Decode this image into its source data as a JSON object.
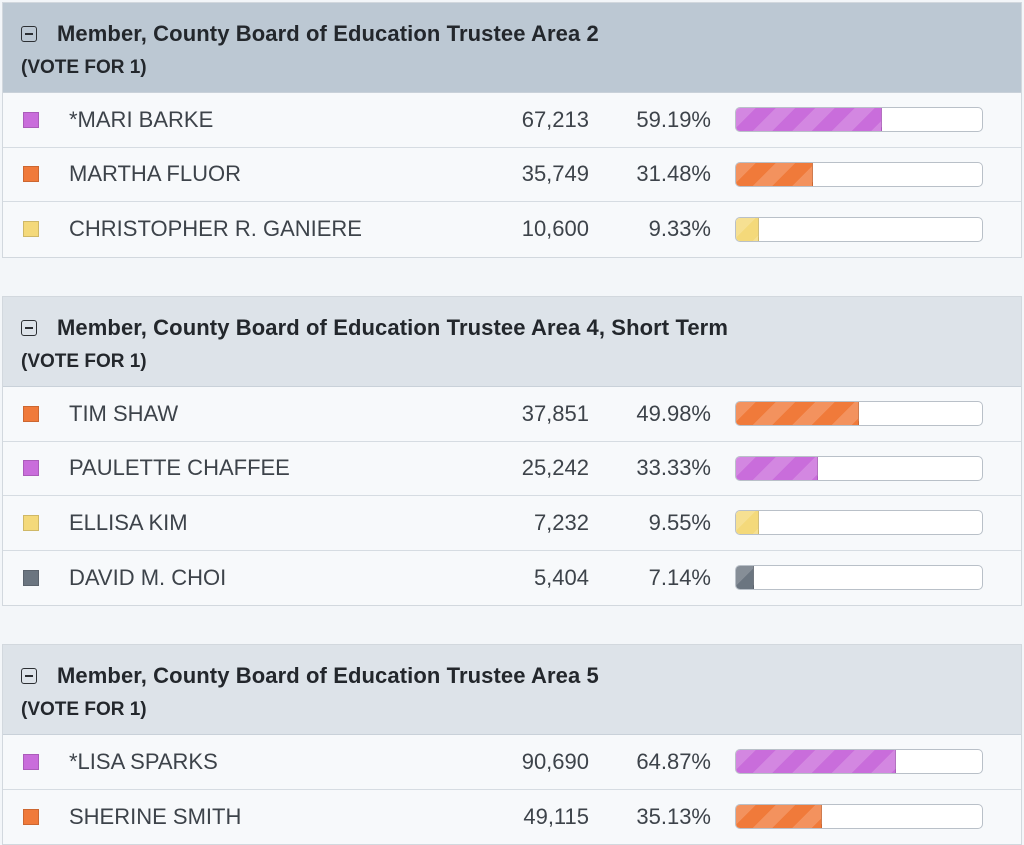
{
  "races": [
    {
      "title": "Member, County Board of Education Trustee Area 2",
      "vote_for": "(VOTE FOR 1)",
      "header_bg": "#bcc8d3",
      "candidates": [
        {
          "name": "*MARI BARKE",
          "votes": "67,213",
          "pct": "59.19%",
          "share": 59.19,
          "color": "#c96ddb"
        },
        {
          "name": "MARTHA FLUOR",
          "votes": "35,749",
          "pct": "31.48%",
          "share": 31.48,
          "color": "#f07a3a"
        },
        {
          "name": "CHRISTOPHER R. GANIERE",
          "votes": "10,600",
          "pct": "9.33%",
          "share": 9.33,
          "color": "#f4d97a"
        }
      ]
    },
    {
      "title": "Member, County Board of Education Trustee Area 4, Short Term",
      "vote_for": "(VOTE FOR 1)",
      "header_bg": "#dde3e9",
      "candidates": [
        {
          "name": "TIM SHAW",
          "votes": "37,851",
          "pct": "49.98%",
          "share": 49.98,
          "color": "#f07a3a"
        },
        {
          "name": "PAULETTE CHAFFEE",
          "votes": "25,242",
          "pct": "33.33%",
          "share": 33.33,
          "color": "#c96ddb"
        },
        {
          "name": "ELLISA KIM",
          "votes": "7,232",
          "pct": "9.55%",
          "share": 9.55,
          "color": "#f4d97a"
        },
        {
          "name": "DAVID M. CHOI",
          "votes": "5,404",
          "pct": "7.14%",
          "share": 7.14,
          "color": "#6b7580"
        }
      ]
    },
    {
      "title": "Member, County Board of Education Trustee Area 5",
      "vote_for": "(VOTE FOR 1)",
      "header_bg": "#dde3e9",
      "candidates": [
        {
          "name": "*LISA SPARKS",
          "votes": "90,690",
          "pct": "64.87%",
          "share": 64.87,
          "color": "#c96ddb"
        },
        {
          "name": "SHERINE SMITH",
          "votes": "49,115",
          "pct": "35.13%",
          "share": 35.13,
          "color": "#f07a3a"
        }
      ]
    }
  ]
}
